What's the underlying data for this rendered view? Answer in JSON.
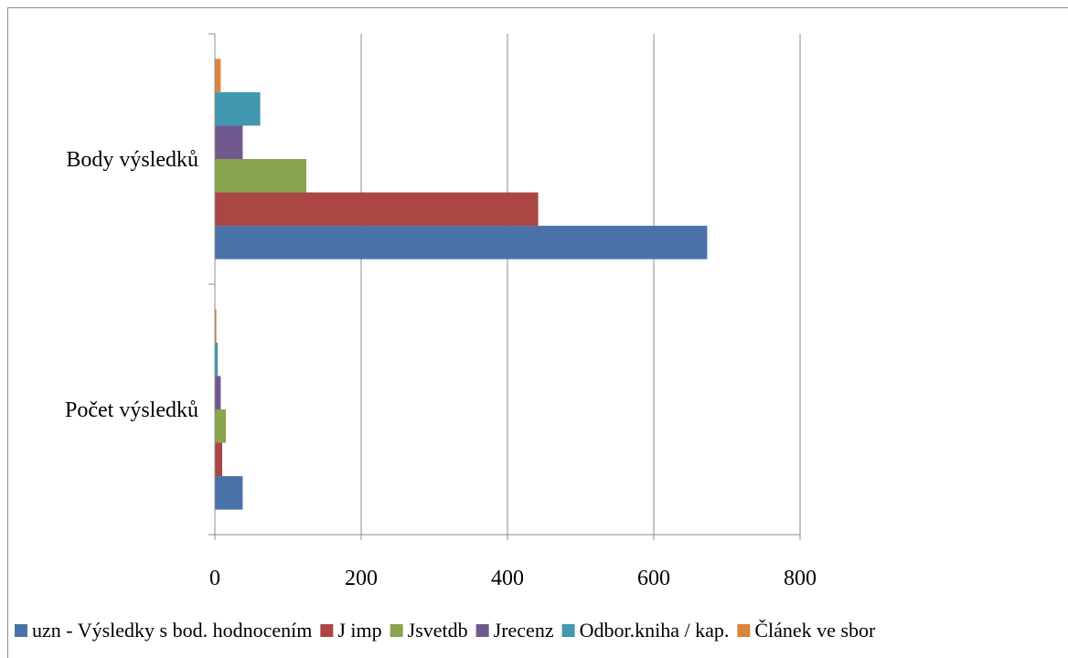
{
  "chart_data": {
    "type": "bar",
    "orientation": "horizontal",
    "categories": [
      "Počet výsledků",
      "Body výsledků"
    ],
    "series": [
      {
        "name": "uzn - Výsledky s bod. hodnocením",
        "color": "#4A72A8",
        "values": [
          38,
          673
        ]
      },
      {
        "name": "J imp",
        "color": "#AA4643",
        "values": [
          10,
          442
        ]
      },
      {
        "name": "Jsvetdb",
        "color": "#89A54E",
        "values": [
          15,
          125
        ]
      },
      {
        "name": "Jrecenz",
        "color": "#71588F",
        "values": [
          8,
          38
        ]
      },
      {
        "name": "Odbor.kniha / kap.",
        "color": "#4198AF",
        "values": [
          4,
          62
        ]
      },
      {
        "name": "Článek ve sbor",
        "color": "#DB843D",
        "values": [
          2,
          8
        ]
      }
    ],
    "xlim": [
      0,
      800
    ],
    "xticks": [
      "0",
      "200",
      "400",
      "600",
      "800"
    ],
    "grid": true,
    "legend": "bottom"
  }
}
